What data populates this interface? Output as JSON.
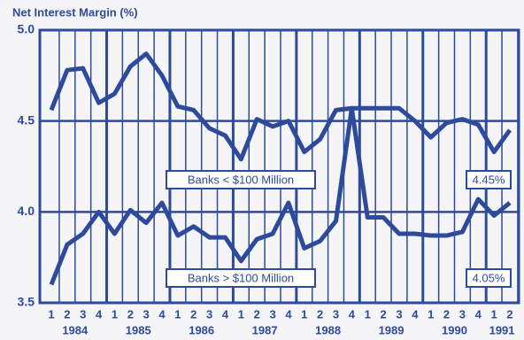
{
  "chart_data": {
    "type": "line",
    "title": "Net Interest Margin (%)",
    "categories": [
      "1",
      "2",
      "3",
      "4",
      "1",
      "2",
      "3",
      "4",
      "1",
      "2",
      "3",
      "4",
      "1",
      "2",
      "3",
      "4",
      "1",
      "2",
      "3",
      "4",
      "1",
      "2",
      "3",
      "4",
      "1",
      "2",
      "3",
      "4",
      "1",
      "2"
    ],
    "year_labels": [
      "1984",
      "1985",
      "1986",
      "1987",
      "1988",
      "1989",
      "1990",
      "1991"
    ],
    "series": [
      {
        "name": "Banks < $100 Million",
        "color": "#2e4a9a",
        "end_label": "4.45%",
        "values": [
          4.56,
          4.78,
          4.79,
          4.6,
          4.65,
          4.8,
          4.87,
          4.75,
          4.58,
          4.56,
          4.46,
          4.42,
          4.29,
          4.51,
          4.47,
          4.5,
          4.33,
          4.4,
          4.56,
          4.57,
          4.57,
          4.57,
          4.57,
          4.5,
          4.41,
          4.49,
          4.51,
          4.48,
          4.33,
          4.45
        ]
      },
      {
        "name": "Banks > $100 Million",
        "color": "#2e4a9a",
        "end_label": "4.05%",
        "values": [
          3.6,
          3.82,
          3.88,
          4.0,
          3.88,
          4.01,
          3.94,
          4.05,
          3.87,
          3.92,
          3.86,
          3.86,
          3.73,
          3.85,
          3.88,
          4.05,
          3.8,
          3.84,
          3.95,
          4.57,
          3.97,
          3.97,
          3.88,
          3.88,
          3.87,
          3.87,
          3.89,
          4.07,
          3.98,
          4.05
        ]
      }
    ],
    "ylim": [
      3.5,
      5.0
    ],
    "yticks": [
      {
        "value": 3.5,
        "label": "3.5"
      },
      {
        "value": 4.0,
        "label": "4.0"
      },
      {
        "value": 4.5,
        "label": "4.5"
      },
      {
        "value": 5.0,
        "label": "5.0"
      }
    ],
    "grid": true
  }
}
